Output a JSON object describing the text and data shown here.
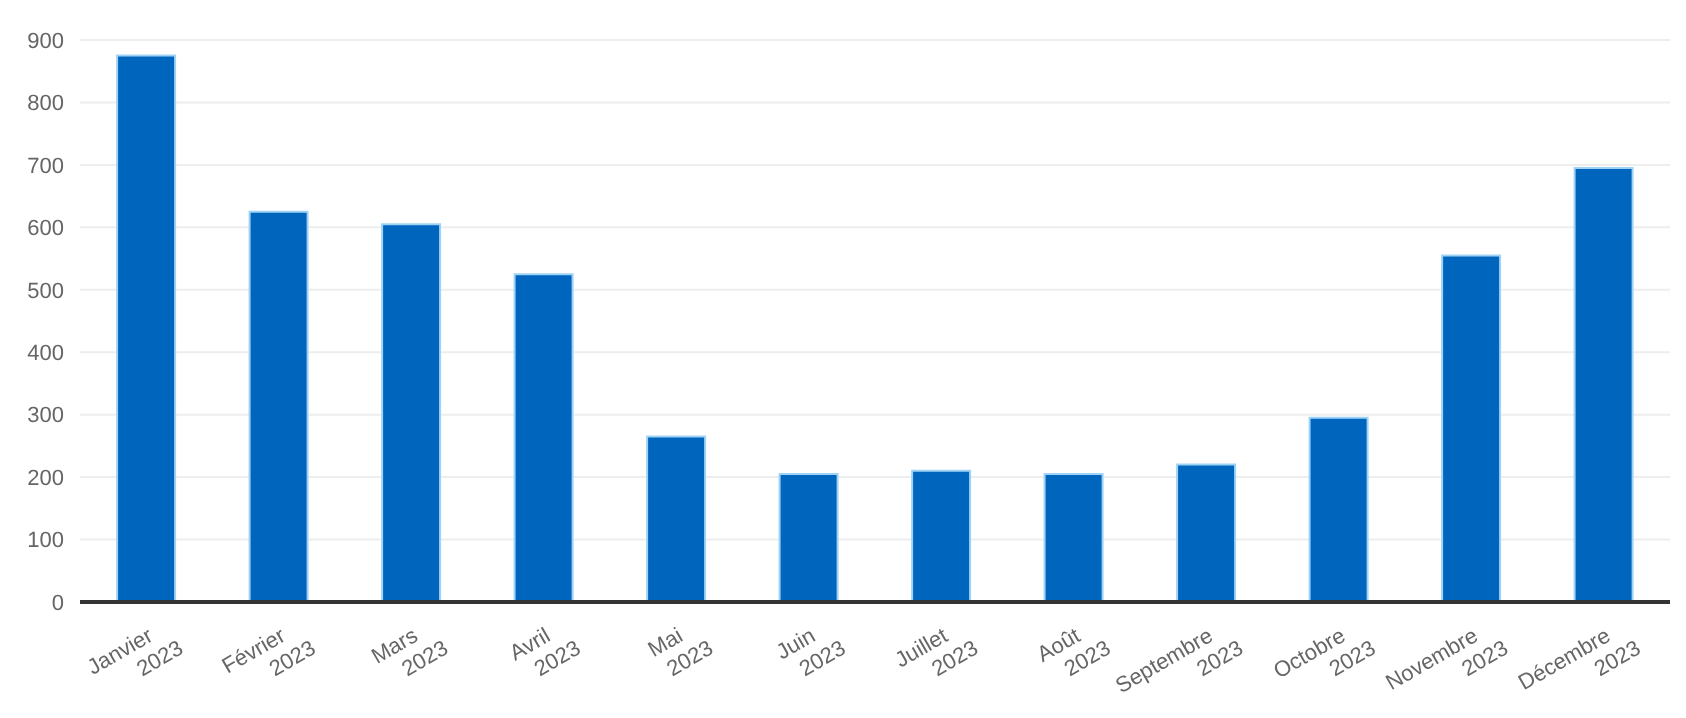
{
  "chart_data": {
    "type": "bar",
    "categories": [
      "Janvier\n2023",
      "Février\n2023",
      "Mars\n2023",
      "Avril\n2023",
      "Mai\n2023",
      "Juin\n2023",
      "Juillet\n2023",
      "Août\n2023",
      "Septembre\n2023",
      "Octobre\n2023",
      "Novembre\n2023",
      "Décembre\n2023"
    ],
    "values": [
      875,
      625,
      605,
      525,
      265,
      205,
      210,
      205,
      220,
      295,
      555,
      695
    ],
    "color": "#0066bd",
    "ylim": [
      0,
      900
    ],
    "yticks": [
      0,
      100,
      200,
      300,
      400,
      500,
      600,
      700,
      800,
      900
    ],
    "grid": "y"
  }
}
